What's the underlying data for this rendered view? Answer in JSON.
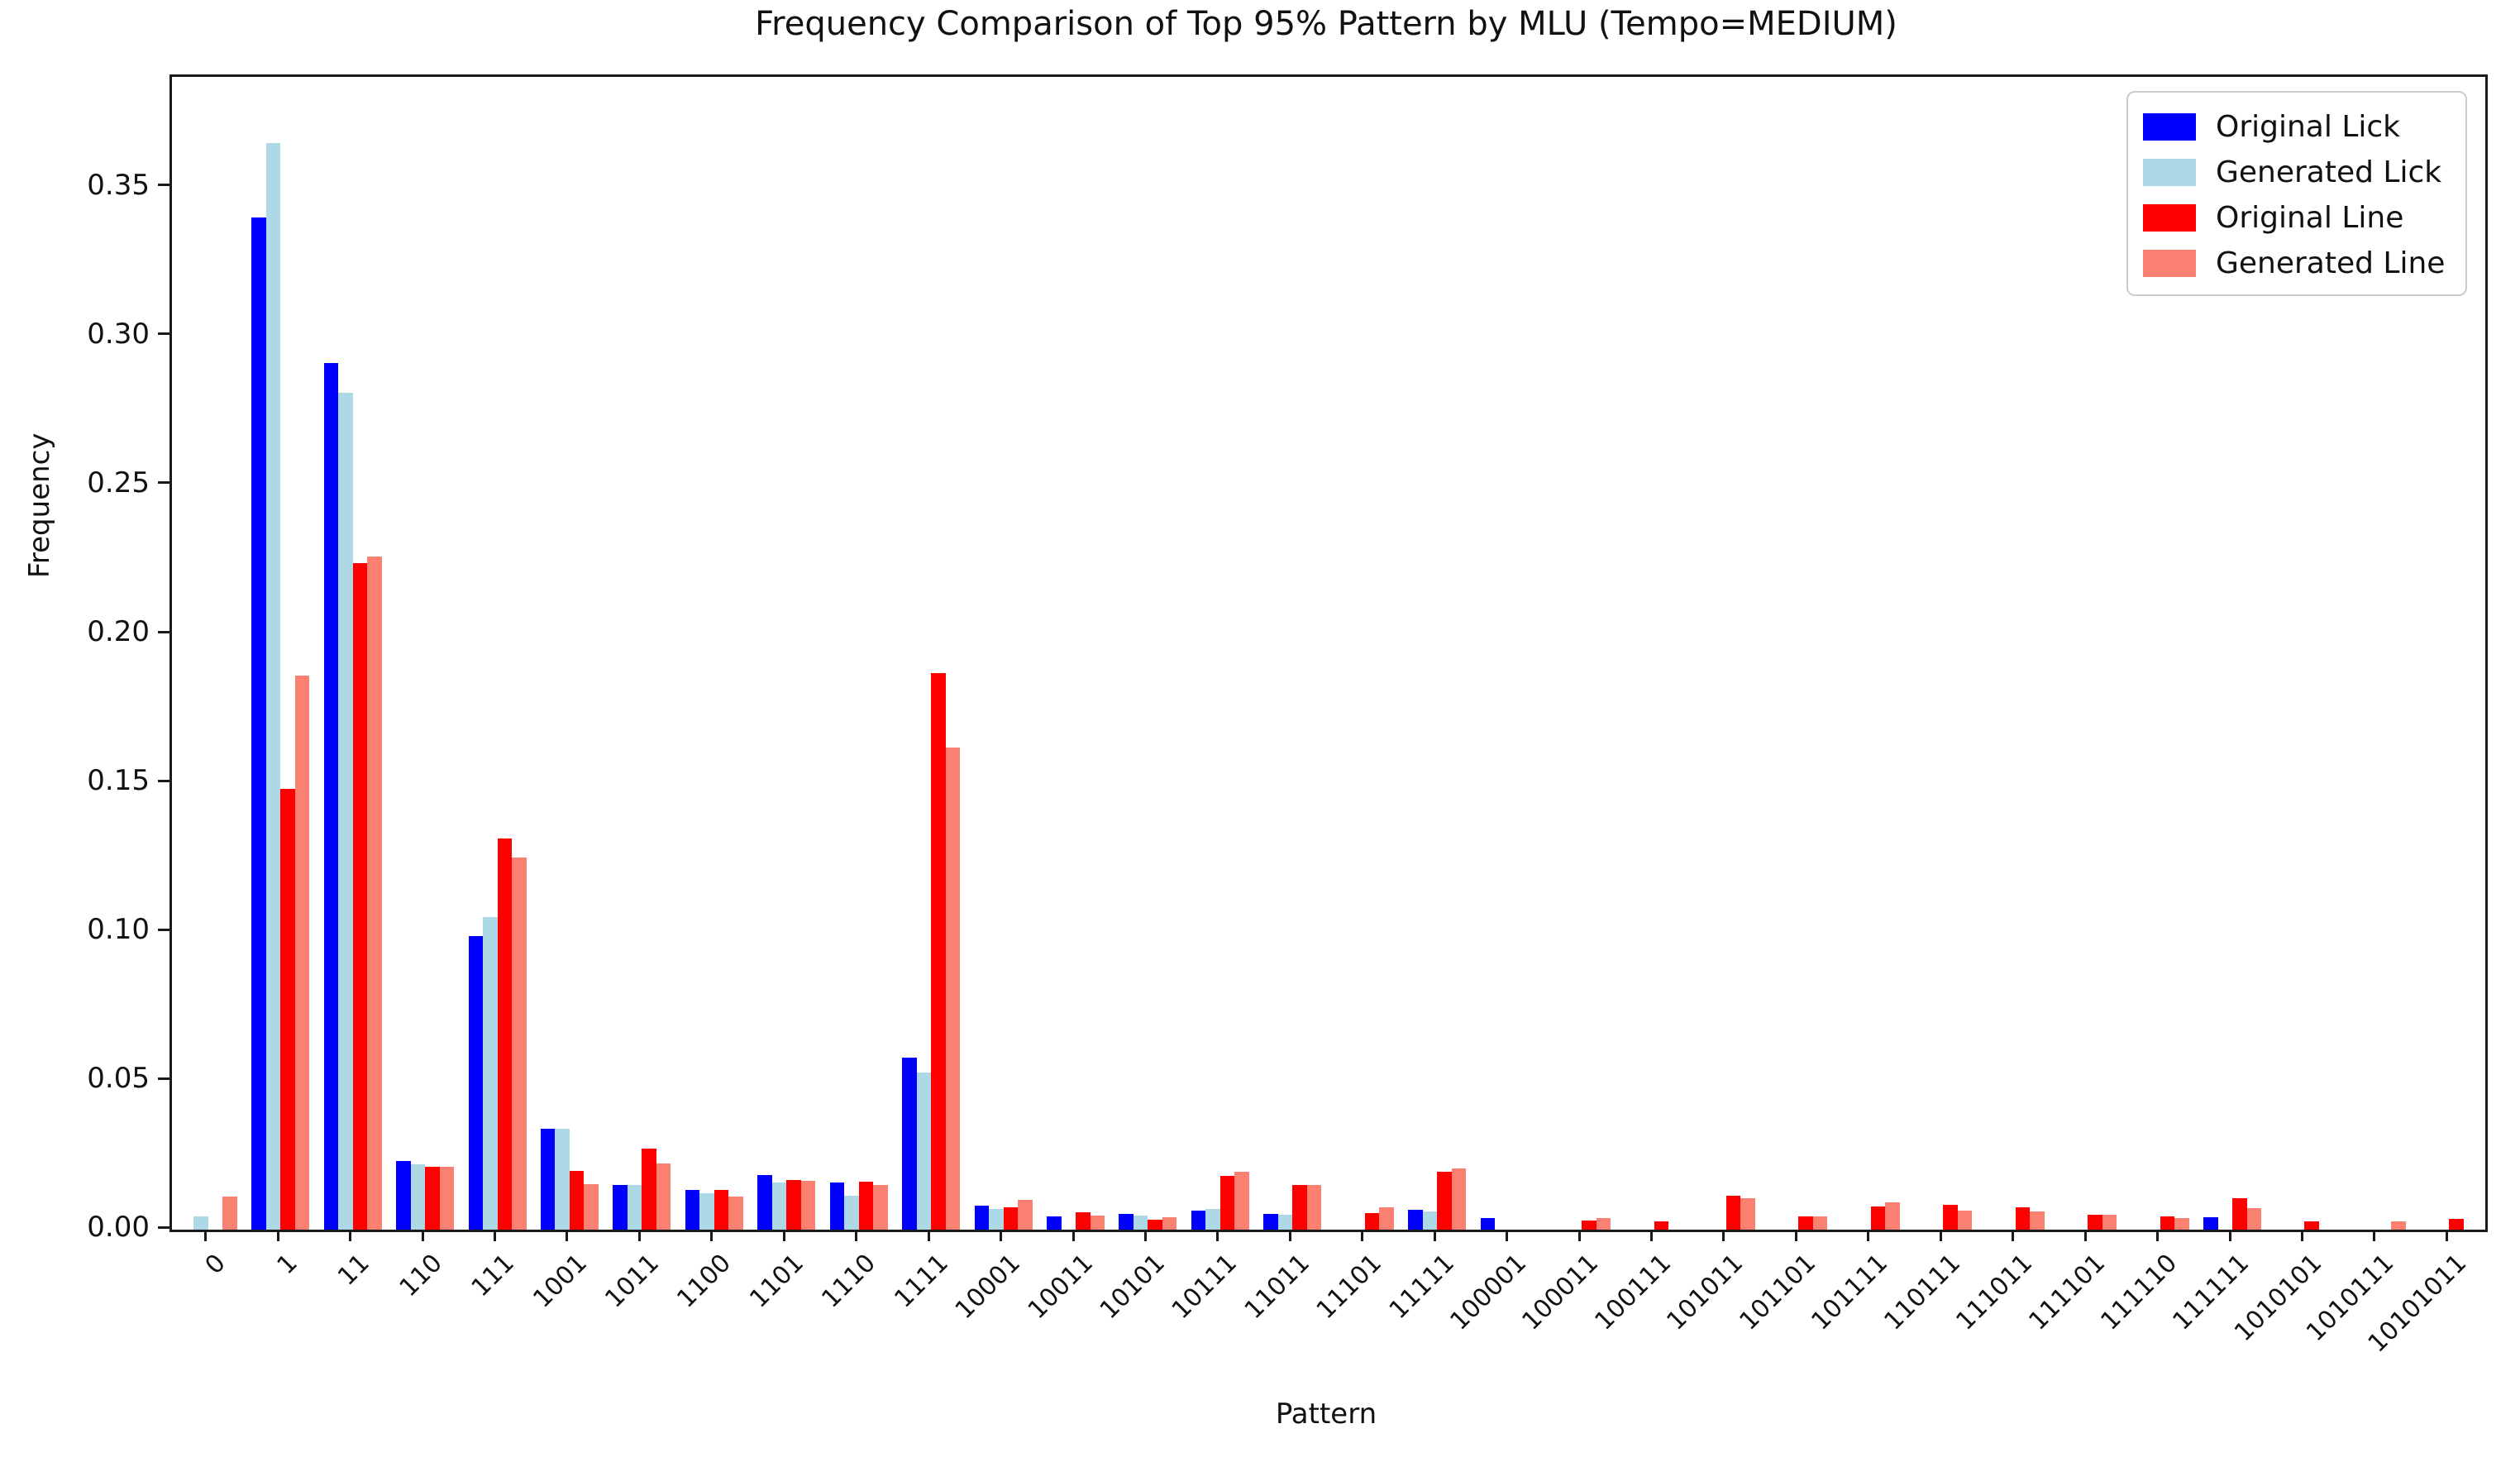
{
  "title": "Frequency Comparison of Top 95% Pattern by MLU (Tempo=MEDIUM)",
  "axes": {
    "xlabel": "Pattern",
    "ylabel": "Frequency",
    "ytick_labels": [
      "0.00",
      "0.05",
      "0.10",
      "0.15",
      "0.20",
      "0.25",
      "0.30",
      "0.35"
    ]
  },
  "legend": {
    "position": "upper right",
    "items": [
      {
        "label": "Original Lick",
        "color": "#0000ff"
      },
      {
        "label": "Generated Lick",
        "color": "#add8e6"
      },
      {
        "label": "Original Line",
        "color": "#ff0000"
      },
      {
        "label": "Generated Line",
        "color": "#fa8072"
      }
    ]
  },
  "chart_data": {
    "type": "bar",
    "title": "Frequency Comparison of Top 95% Pattern by MLU (Tempo=MEDIUM)",
    "xlabel": "Pattern",
    "ylabel": "Frequency",
    "ylim": [
      0,
      0.3872
    ],
    "yticks": [
      0.0,
      0.05,
      0.1,
      0.15,
      0.2,
      0.25,
      0.3,
      0.35
    ],
    "grid": false,
    "legend_position": "upper right",
    "categories": [
      "0",
      "1",
      "11",
      "110",
      "111",
      "1001",
      "1011",
      "1100",
      "1101",
      "1110",
      "1111",
      "10001",
      "10011",
      "10101",
      "10111",
      "11011",
      "11101",
      "11111",
      "100001",
      "100011",
      "100111",
      "101011",
      "101101",
      "101111",
      "110111",
      "111011",
      "111101",
      "111110",
      "111111",
      "1010101",
      "1010111",
      "10101011"
    ],
    "series": [
      {
        "name": "Original Lick",
        "color": "#0000ff",
        "values": [
          0,
          0.34,
          0.291,
          0.023,
          0.0985,
          0.034,
          0.015,
          0.0134,
          0.0184,
          0.0158,
          0.0578,
          0.008,
          0.0044,
          0.0053,
          0.0065,
          0.0053,
          0,
          0.0068,
          0.0038,
          0,
          0,
          0,
          0,
          0,
          0,
          0,
          0,
          0,
          0.0042,
          0,
          0,
          0
        ]
      },
      {
        "name": "Generated Lick",
        "color": "#add8e6",
        "values": [
          0.0045,
          0.365,
          0.281,
          0.022,
          0.105,
          0.034,
          0.015,
          0.0121,
          0.0158,
          0.0113,
          0.0527,
          0.007,
          0,
          0.0048,
          0.0069,
          0.0051,
          0,
          0.0061,
          0,
          0,
          0,
          0,
          0,
          0,
          0,
          0,
          0,
          0,
          0,
          0,
          0,
          0
        ]
      },
      {
        "name": "Original Line",
        "color": "#ff0000",
        "values": [
          0,
          0.148,
          0.224,
          0.021,
          0.1315,
          0.0198,
          0.0273,
          0.0134,
          0.0168,
          0.016,
          0.187,
          0.0075,
          0.0058,
          0.0034,
          0.0181,
          0.0151,
          0.0056,
          0.0194,
          0,
          0.0032,
          0.0028,
          0.0114,
          0.0044,
          0.0079,
          0.0084,
          0.0074,
          0.0051,
          0.0045,
          0.0106,
          0.0028,
          0,
          0.0035
        ]
      },
      {
        "name": "Generated Line",
        "color": "#fa8072",
        "values": [
          0.0112,
          0.186,
          0.226,
          0.021,
          0.125,
          0.0153,
          0.0222,
          0.0111,
          0.0165,
          0.0149,
          0.162,
          0.0099,
          0.0046,
          0.0042,
          0.0194,
          0.0151,
          0.0074,
          0.0206,
          0,
          0.0038,
          0,
          0.0107,
          0.0044,
          0.0091,
          0.0063,
          0.0061,
          0.0051,
          0.0039,
          0.0073,
          0,
          0.0029,
          0
        ]
      }
    ]
  }
}
